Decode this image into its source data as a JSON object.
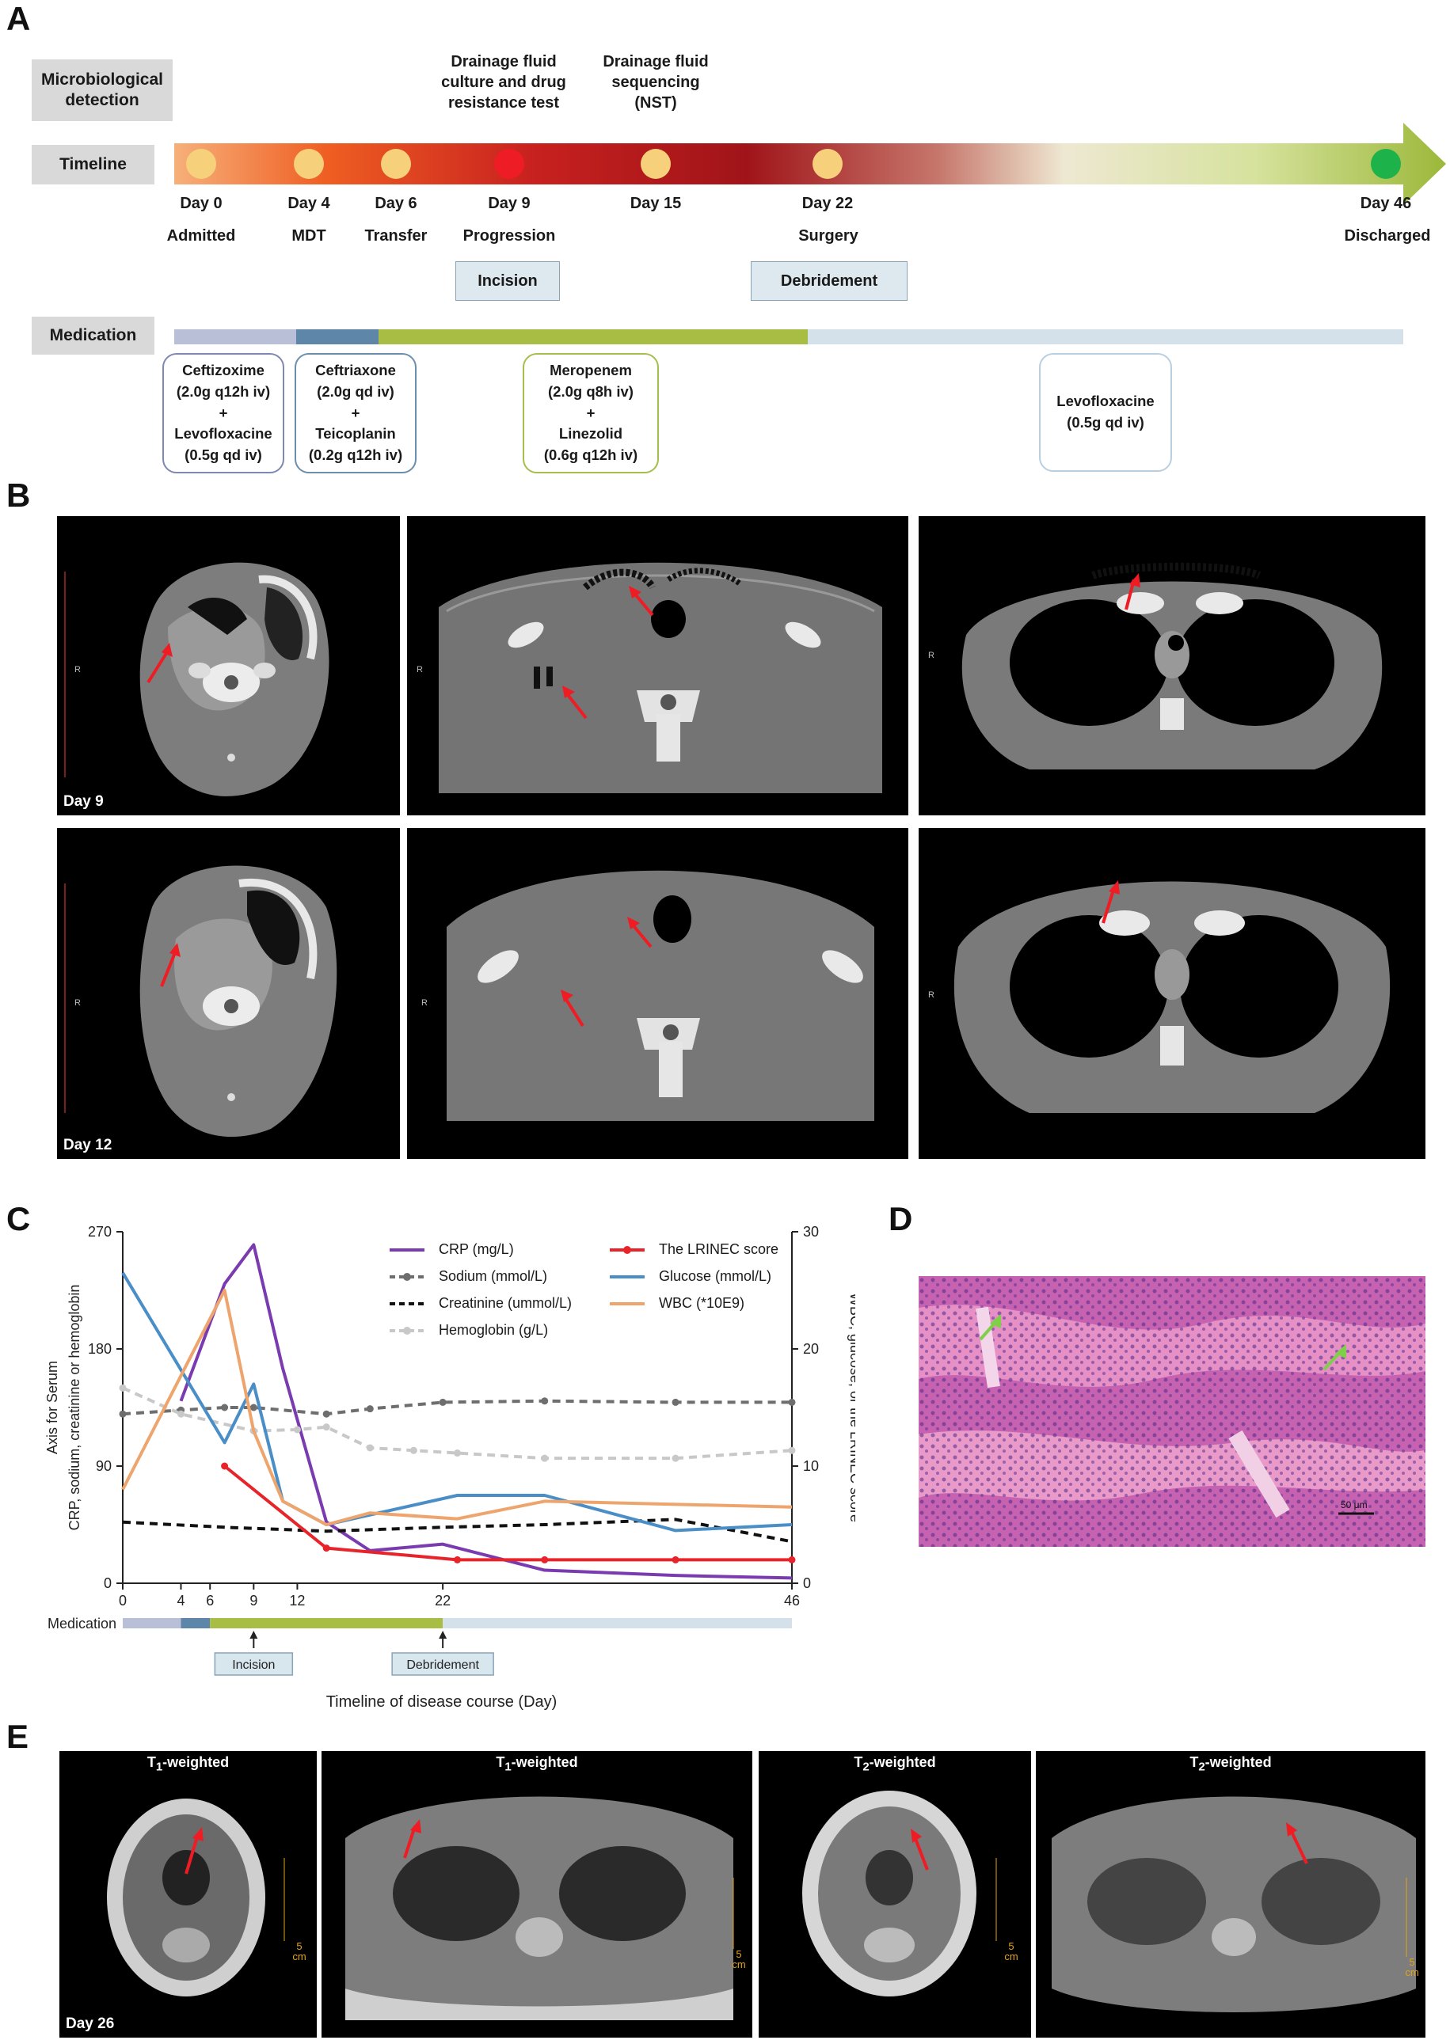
{
  "panels": {
    "a": "A",
    "b": "B",
    "c": "C",
    "d": "D",
    "e": "E"
  },
  "panel_a": {
    "row_labels": {
      "micro": "Microbiological detection",
      "timeline": "Timeline",
      "medication": "Medication"
    },
    "micro_events": [
      {
        "lines": [
          "Drainage fluid",
          "culture and drug",
          "resistance test"
        ]
      },
      {
        "lines": [
          "Drainage fluid",
          "sequencing",
          "(NST)"
        ]
      }
    ],
    "days": [
      {
        "day": "Day 0",
        "phase": "Admitted",
        "color": "#f6d07b"
      },
      {
        "day": "Day 4",
        "phase": "MDT",
        "color": "#f6d07b"
      },
      {
        "day": "Day 6",
        "phase": "Transfer",
        "color": "#f6d07b"
      },
      {
        "day": "Day 9",
        "phase": "Progression",
        "color": "#ee1c25"
      },
      {
        "day": "Day 15",
        "phase": "",
        "color": "#f6d07b"
      },
      {
        "day": "Day 22",
        "phase": "Surgery",
        "color": "#f6d07b"
      },
      {
        "day": "Day 46",
        "phase": "Discharged",
        "color": "#1db34a"
      }
    ],
    "procedures": [
      "Incision",
      "Debridement"
    ],
    "drugs": [
      {
        "lines": [
          "Ceftizoxime",
          "(2.0g q12h iv)",
          "+",
          "Levofloxacine",
          "(0.5g qd iv)"
        ],
        "color": "#7f88b2"
      },
      {
        "lines": [
          "Ceftriaxone",
          "(2.0g qd iv)",
          "+",
          "Teicoplanin",
          "(0.2g q12h iv)"
        ],
        "color": "#6a8fad"
      },
      {
        "lines": [
          "Meropenem",
          "(2.0g q8h iv)",
          "+",
          "Linezolid",
          "(0.6g q12h iv)"
        ],
        "color": "#a5be4c"
      },
      {
        "lines": [
          "Levofloxacine",
          "(0.5g qd iv)"
        ],
        "color": "#b9cfe0"
      }
    ],
    "med_bar_colors": [
      "#b8bfd6",
      "#5e86a8",
      "#a8bd44",
      "#d4e0ea"
    ]
  },
  "panel_b": {
    "day_labels": [
      "Day 9",
      "Day 12"
    ],
    "side_marker": "R"
  },
  "chart_data": {
    "type": "line",
    "x_ticks": [
      0,
      4,
      6,
      9,
      12,
      22,
      46
    ],
    "xlabel": "Timeline of disease course (Day)",
    "y_left": {
      "label": "Axis for Serum CRP, sodium, creatinine or hemoglobin",
      "ticks": [
        0,
        90,
        180,
        270
      ],
      "range": [
        0,
        270
      ]
    },
    "y_right": {
      "label": "Axis for WBC, glucose, or the LRINEC score",
      "ticks": [
        0,
        10,
        20,
        30
      ],
      "range": [
        0,
        30
      ]
    },
    "series": [
      {
        "name": "CRP (mg/L)",
        "axis": "left",
        "color": "#7a3bb0",
        "dash": "",
        "marker": false,
        "x": [
          4,
          7,
          9,
          11,
          14,
          17,
          22,
          29,
          38,
          46
        ],
        "y": [
          140,
          230,
          260,
          165,
          47,
          25,
          30,
          10,
          6,
          4
        ]
      },
      {
        "name": "Sodium (mmol/L)",
        "axis": "left",
        "color": "#6e6e6e",
        "dash": "10,7",
        "marker": true,
        "x": [
          0,
          4,
          7,
          9,
          14,
          17,
          22,
          29,
          38,
          46
        ],
        "y": [
          130,
          133,
          135,
          135,
          130,
          134,
          139,
          140,
          139,
          139
        ]
      },
      {
        "name": "Creatinine (ummol/L)",
        "axis": "left",
        "color": "#111111",
        "dash": "10,7",
        "marker": false,
        "x": [
          0,
          7,
          14,
          22,
          29,
          38,
          46
        ],
        "y": [
          47,
          43,
          40,
          43,
          45,
          49,
          32
        ]
      },
      {
        "name": "Hemoglobin (g/L)",
        "axis": "left",
        "color": "#c8c8c8",
        "dash": "10,7",
        "marker": true,
        "x": [
          0,
          4,
          9,
          12,
          14,
          17,
          20,
          23,
          29,
          38,
          46
        ],
        "y": [
          150,
          130,
          117,
          118,
          120,
          104,
          102,
          100,
          96,
          96,
          102
        ]
      },
      {
        "name": "The LRINEC score",
        "axis": "right",
        "color": "#e8242b",
        "dash": "",
        "marker": true,
        "x": [
          7,
          14,
          23,
          29,
          38,
          46
        ],
        "y": [
          10,
          3,
          2,
          2,
          2,
          2
        ]
      },
      {
        "name": "Glucose (mmol/L)",
        "axis": "right",
        "color": "#4a8ec8",
        "dash": "",
        "marker": false,
        "x": [
          0,
          7,
          9,
          11,
          14,
          23,
          29,
          38,
          46
        ],
        "y": [
          26.5,
          12,
          17,
          7,
          5,
          7.5,
          7.5,
          4.5,
          5
        ]
      },
      {
        "name": "WBC (*10E9)",
        "axis": "right",
        "color": "#eea56d",
        "dash": "",
        "marker": false,
        "x": [
          0,
          7,
          9,
          11,
          14,
          17,
          23,
          29,
          46
        ],
        "y": [
          8,
          25,
          13,
          7,
          5,
          6,
          5.5,
          7,
          6.5
        ]
      }
    ],
    "med_row_label": "Medication",
    "med_segments": [
      {
        "from": 0,
        "to": 4,
        "color": "#b8bfd6"
      },
      {
        "from": 4,
        "to": 6,
        "color": "#5e86a8"
      },
      {
        "from": 6,
        "to": 22,
        "color": "#a8bd44"
      },
      {
        "from": 22,
        "to": 46,
        "color": "#d4e0ea"
      }
    ],
    "annotations": [
      {
        "at": 9,
        "label": "Incision"
      },
      {
        "at": 22,
        "label": "Debridement"
      }
    ]
  },
  "panel_d": {
    "scale": "50 μm"
  },
  "panel_e": {
    "images": [
      {
        "title_main": "T",
        "title_sub": "1",
        "title_rest": "-weighted",
        "scale": "5 cm",
        "day": "Day 26"
      },
      {
        "title_main": "T",
        "title_sub": "1",
        "title_rest": "-weighted",
        "scale": "5 cm",
        "day": ""
      },
      {
        "title_main": "T",
        "title_sub": "2",
        "title_rest": "-weighted",
        "scale": "5 cm",
        "day": ""
      },
      {
        "title_main": "T",
        "title_sub": "2",
        "title_rest": "-weighted",
        "scale": "5 cm",
        "day": ""
      }
    ]
  }
}
